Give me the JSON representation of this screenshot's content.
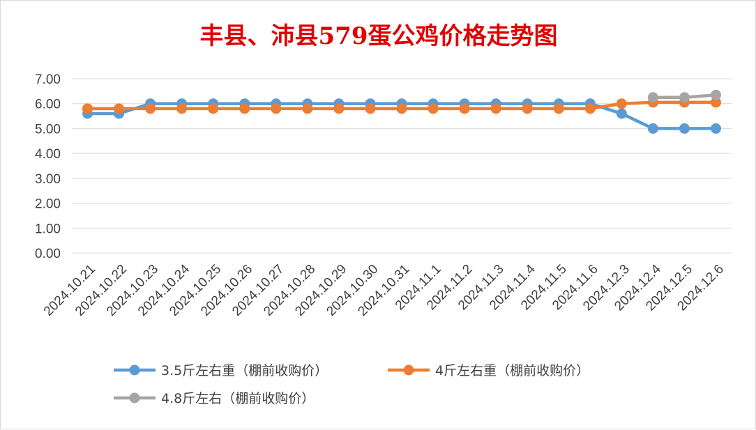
{
  "chart_data": {
    "type": "line",
    "title": "丰县、沛县579蛋公鸡价格走势图",
    "xlabel": "",
    "ylabel": "",
    "ylim": [
      0,
      7
    ],
    "ytick_labels": [
      "0.00",
      "1.00",
      "2.00",
      "3.00",
      "4.00",
      "5.00",
      "6.00",
      "7.00"
    ],
    "grid": "horizontal",
    "legend_position": "bottom",
    "categories": [
      "2024.10.21",
      "2024.10.22",
      "2024.10.23",
      "2024.10.24",
      "2024.10.25",
      "2024.10.26",
      "2024.10.27",
      "2024.10.28",
      "2024.10.29",
      "2024.10.30",
      "2024.10.31",
      "2024.11.1",
      "2024.11.2",
      "2024.11.3",
      "2024.11.4",
      "2024.11.5",
      "2024.11.6",
      "2024.12.3",
      "2024.12.4",
      "2024.12.5",
      "2024.12.6"
    ],
    "series": [
      {
        "name": "3.5斤左右重（棚前收购价）",
        "color": "#5b9bd5",
        "values": [
          5.6,
          5.6,
          6.0,
          6.0,
          6.0,
          6.0,
          6.0,
          6.0,
          6.0,
          6.0,
          6.0,
          6.0,
          6.0,
          6.0,
          6.0,
          6.0,
          6.0,
          5.6,
          5.0,
          5.0,
          5.0
        ]
      },
      {
        "name": "4斤左右重（棚前收购价）",
        "color": "#ed7d31",
        "values": [
          5.8,
          5.8,
          5.8,
          5.8,
          5.8,
          5.8,
          5.8,
          5.8,
          5.8,
          5.8,
          5.8,
          5.8,
          5.8,
          5.8,
          5.8,
          5.8,
          5.8,
          6.0,
          6.05,
          6.05,
          6.05
        ]
      },
      {
        "name": "4.8斤左右（棚前收购价）",
        "color": "#a5a5a5",
        "values": [
          null,
          null,
          null,
          null,
          null,
          null,
          null,
          null,
          null,
          null,
          null,
          null,
          null,
          null,
          null,
          null,
          null,
          null,
          6.25,
          6.25,
          6.35
        ]
      }
    ]
  }
}
